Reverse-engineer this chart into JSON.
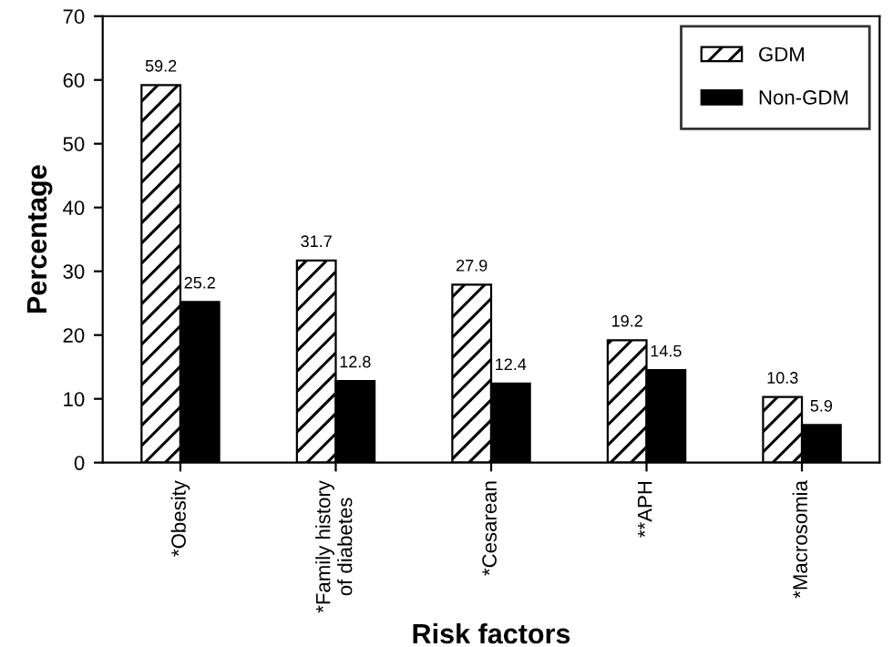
{
  "chart_data": {
    "type": "bar",
    "xlabel": "Risk factors",
    "ylabel": "Percentage",
    "categories": [
      "*Obesity",
      "*Family history\nof diabetes",
      "*Cesarean",
      "**APH",
      "*Macrosomia"
    ],
    "series": [
      {
        "name": "GDM",
        "color": "#000000",
        "values": [
          59.2,
          31.7,
          27.9,
          19.2,
          10.3
        ]
      },
      {
        "name": "Non-GDM",
        "color": "#000000",
        "values": [
          25.2,
          12.8,
          12.4,
          14.5,
          5.9
        ]
      }
    ],
    "ylim": [
      0,
      70
    ],
    "yticks": [
      0,
      10,
      20,
      30,
      40,
      50,
      60,
      70
    ],
    "grid": false,
    "legend": "top right",
    "data_labels": true
  }
}
